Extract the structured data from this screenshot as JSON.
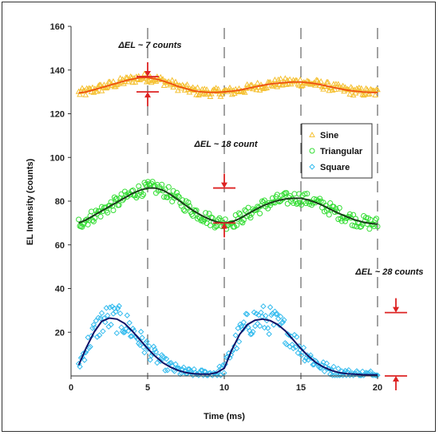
{
  "chart_data": {
    "type": "scatter",
    "xlabel": "Time (ms)",
    "ylabel": "EL Intensity (counts)",
    "xlim": [
      0,
      20
    ],
    "ylim": [
      0,
      160
    ],
    "xticks": [
      0,
      5,
      10,
      15,
      20
    ],
    "yticks": [
      20,
      40,
      60,
      80,
      100,
      120,
      140,
      160
    ],
    "grid": "vertical dashed lines at 5, 10, 15, 20 ms",
    "legend_position": "center-right",
    "series": [
      {
        "name": "Sine",
        "marker": "triangle",
        "color": "#f5c030",
        "fit_color": "#ee5511",
        "fit": {
          "x": [
            0.5,
            1,
            1.5,
            2,
            2.5,
            3,
            3.5,
            4,
            4.5,
            5,
            5.5,
            6,
            6.5,
            7,
            7.5,
            8,
            8.5,
            9,
            9.5,
            10,
            10.5,
            11,
            11.5,
            12,
            12.5,
            13,
            13.5,
            14,
            14.5,
            15,
            15.5,
            16,
            16.5,
            17,
            17.5,
            18,
            18.5,
            19,
            19.5,
            20
          ],
          "y": [
            129.5,
            130,
            131,
            132,
            133,
            134,
            135,
            135.8,
            136.5,
            136.5,
            136,
            135,
            133.8,
            132.5,
            131.5,
            130.5,
            130,
            129.8,
            129.8,
            130,
            130.3,
            130.8,
            131.5,
            132.3,
            133,
            133.6,
            134,
            134.3,
            134.5,
            134.5,
            134.2,
            133.7,
            133,
            132.2,
            131.5,
            130.8,
            130.3,
            130,
            129.8,
            129.7
          ]
        }
      },
      {
        "name": "Triangular",
        "marker": "circle",
        "color": "#33dd33",
        "fit_color": "#1a3a1a",
        "fit": {
          "x": [
            0.5,
            1,
            1.5,
            2,
            2.5,
            3,
            3.5,
            4,
            4.5,
            5,
            5.5,
            6,
            6.5,
            7,
            7.5,
            8,
            8.5,
            9,
            9.5,
            10,
            10.5,
            11,
            11.5,
            12,
            12.5,
            13,
            13.5,
            14,
            14.5,
            15,
            15.5,
            16,
            16.5,
            17,
            17.5,
            18,
            18.5,
            19,
            19.5,
            20
          ],
          "y": [
            70,
            71.5,
            73.5,
            75.5,
            77.5,
            79.5,
            81.5,
            83.5,
            85,
            86,
            86,
            85,
            83,
            80.5,
            78,
            75.5,
            73.5,
            71.8,
            70.5,
            70,
            70.5,
            72,
            74,
            76,
            77.8,
            79.2,
            80.3,
            81,
            81.3,
            81.3,
            80.5,
            79.3,
            77.8,
            76,
            74.3,
            72.8,
            71.5,
            70.5,
            69.8,
            69.5
          ]
        }
      },
      {
        "name": "Square",
        "marker": "diamond",
        "color": "#33bbee",
        "fit_color": "#111166",
        "fit": {
          "x": [
            0.5,
            1,
            1.5,
            2,
            2.5,
            3,
            3.5,
            4,
            4.5,
            5,
            5.5,
            6,
            6.5,
            7,
            7.5,
            8,
            8.5,
            9,
            9.5,
            10,
            10.5,
            11,
            11.5,
            12,
            12.5,
            13,
            13.5,
            14,
            14.5,
            15,
            15.5,
            16,
            16.5,
            17,
            17.5,
            18,
            18.5,
            19,
            19.5,
            20
          ],
          "y": [
            5,
            13,
            20,
            25,
            26.5,
            26,
            24,
            20.5,
            16.5,
            12.5,
            9,
            6,
            4,
            2.5,
            1.5,
            1,
            0.8,
            0.8,
            1.5,
            3.5,
            12,
            19,
            23.5,
            25.5,
            26,
            25.3,
            23.5,
            20.5,
            16.5,
            12.5,
            9,
            6,
            4,
            2.5,
            1.5,
            1,
            0.8,
            0.6,
            0.5,
            0.5
          ]
        }
      }
    ],
    "annotations": [
      {
        "text": "ΔEL ~ 7 counts",
        "x": 5,
        "y1": 130,
        "y2": 137
      },
      {
        "text": "ΔEL ~ 18 count",
        "x": 10,
        "y1": 70,
        "y2": 86
      },
      {
        "text": "ΔEL ~ 28 counts",
        "x": 21.2,
        "y1": 0,
        "y2": 29
      }
    ]
  }
}
